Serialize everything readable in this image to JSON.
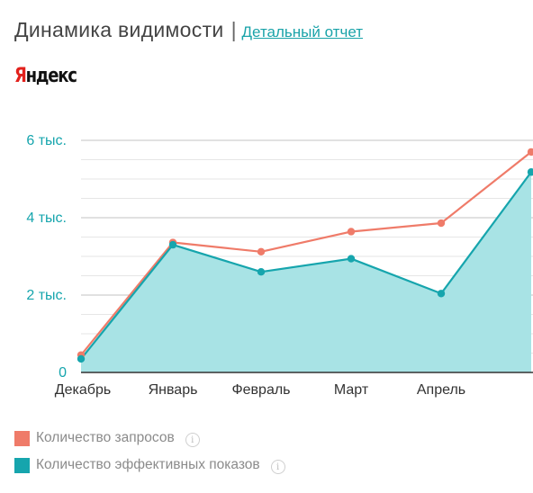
{
  "header": {
    "title": "Динамика видимости",
    "separator": "|",
    "report_link": "Детальный отчет"
  },
  "brand": {
    "logo_first": "Я",
    "logo_rest": "ндекс"
  },
  "colors": {
    "requests": "#ef7b69",
    "impressions": "#16a5ad",
    "area_fill": "#a8e3e5",
    "axis_text": "#16a5ad"
  },
  "chart_data": {
    "type": "area",
    "categories": [
      "Декабрь",
      "Январь",
      "Февраль",
      "Март",
      "Апрель",
      ""
    ],
    "y_ticks": [
      {
        "value": 0,
        "label": "0"
      },
      {
        "value": 2000,
        "label": "2 тыс."
      },
      {
        "value": 4000,
        "label": "4 тыс."
      },
      {
        "value": 6000,
        "label": "6 тыс."
      }
    ],
    "ylim": [
      0,
      6000
    ],
    "series": [
      {
        "name": "Количество запросов",
        "values": [
          450,
          3360,
          3120,
          3640,
          3860,
          5700
        ]
      },
      {
        "name": "Количество эффективных показов",
        "values": [
          350,
          3300,
          2600,
          2940,
          2040,
          5180
        ]
      }
    ]
  },
  "legend": {
    "items": [
      {
        "label": "Количество запросов",
        "icon": "info-icon",
        "info_glyph": "i"
      },
      {
        "label": "Количество эффективных показов",
        "icon": "info-icon",
        "info_glyph": "i"
      }
    ]
  }
}
